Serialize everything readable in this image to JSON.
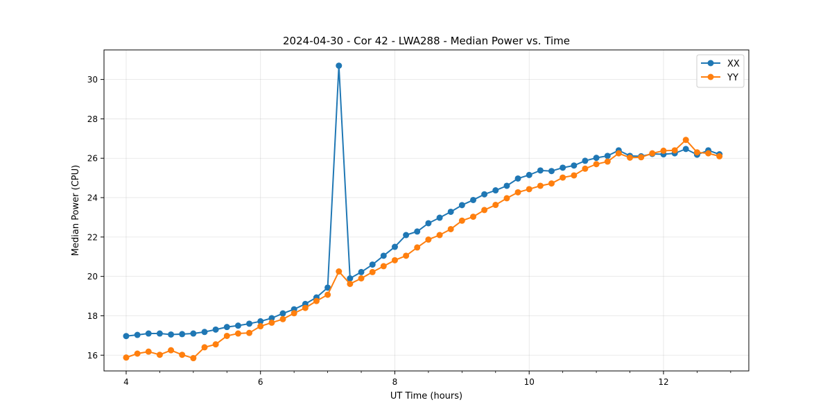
{
  "chart_data": {
    "type": "line",
    "title": "2024-04-30 - Cor 42 - LWA288 - Median Power vs. Time",
    "xlabel": "UT Time (hours)",
    "ylabel": "Median Power (CPU)",
    "xlim": [
      3.67,
      13.27
    ],
    "ylim": [
      15.2,
      31.5
    ],
    "x_ticks": [
      4,
      6,
      8,
      10,
      12
    ],
    "x_tick_labels": [
      "4",
      "6",
      "8",
      "10",
      "12"
    ],
    "x_minor_step": 0.5,
    "y_ticks": [
      16,
      18,
      20,
      22,
      24,
      26,
      28,
      30
    ],
    "y_tick_labels": [
      "16",
      "18",
      "20",
      "22",
      "24",
      "26",
      "28",
      "30"
    ],
    "grid": true,
    "legend_position": "top-right",
    "x": [
      4.0,
      4.167,
      4.333,
      4.5,
      4.667,
      4.833,
      5.0,
      5.167,
      5.333,
      5.5,
      5.667,
      5.833,
      6.0,
      6.167,
      6.333,
      6.5,
      6.667,
      6.833,
      7.0,
      7.167,
      7.333,
      7.5,
      7.667,
      7.833,
      8.0,
      8.167,
      8.333,
      8.5,
      8.667,
      8.833,
      9.0,
      9.167,
      9.333,
      9.5,
      9.667,
      9.833,
      10.0,
      10.167,
      10.333,
      10.5,
      10.667,
      10.833,
      11.0,
      11.167,
      11.333,
      11.5,
      11.667,
      11.833,
      12.0,
      12.167,
      12.333,
      12.5,
      12.667,
      12.833
    ],
    "series": [
      {
        "name": "XX",
        "color": "#1f77b4",
        "values": [
          16.97,
          17.03,
          17.1,
          17.1,
          17.05,
          17.07,
          17.1,
          17.18,
          17.3,
          17.43,
          17.5,
          17.6,
          17.72,
          17.88,
          18.12,
          18.33,
          18.6,
          18.93,
          19.43,
          30.7,
          19.9,
          20.22,
          20.6,
          21.05,
          21.5,
          22.1,
          22.28,
          22.7,
          22.98,
          23.28,
          23.62,
          23.88,
          24.17,
          24.37,
          24.6,
          24.97,
          25.15,
          25.38,
          25.35,
          25.52,
          25.63,
          25.87,
          26.02,
          26.12,
          26.4,
          26.12,
          26.1,
          26.22,
          26.2,
          26.25,
          26.47,
          26.18,
          26.4,
          26.2
        ]
      },
      {
        "name": "YY",
        "color": "#ff7f0e",
        "values": [
          15.88,
          16.08,
          16.18,
          16.02,
          16.25,
          16.02,
          15.85,
          16.4,
          16.55,
          16.98,
          17.1,
          17.13,
          17.47,
          17.65,
          17.83,
          18.13,
          18.4,
          18.75,
          19.07,
          20.25,
          19.62,
          19.9,
          20.22,
          20.52,
          20.82,
          21.05,
          21.47,
          21.87,
          22.1,
          22.4,
          22.83,
          23.03,
          23.37,
          23.63,
          23.97,
          24.27,
          24.43,
          24.6,
          24.72,
          25.02,
          25.13,
          25.47,
          25.7,
          25.83,
          26.25,
          26.03,
          26.05,
          26.25,
          26.38,
          26.4,
          26.93,
          26.3,
          26.25,
          26.1
        ]
      }
    ]
  }
}
